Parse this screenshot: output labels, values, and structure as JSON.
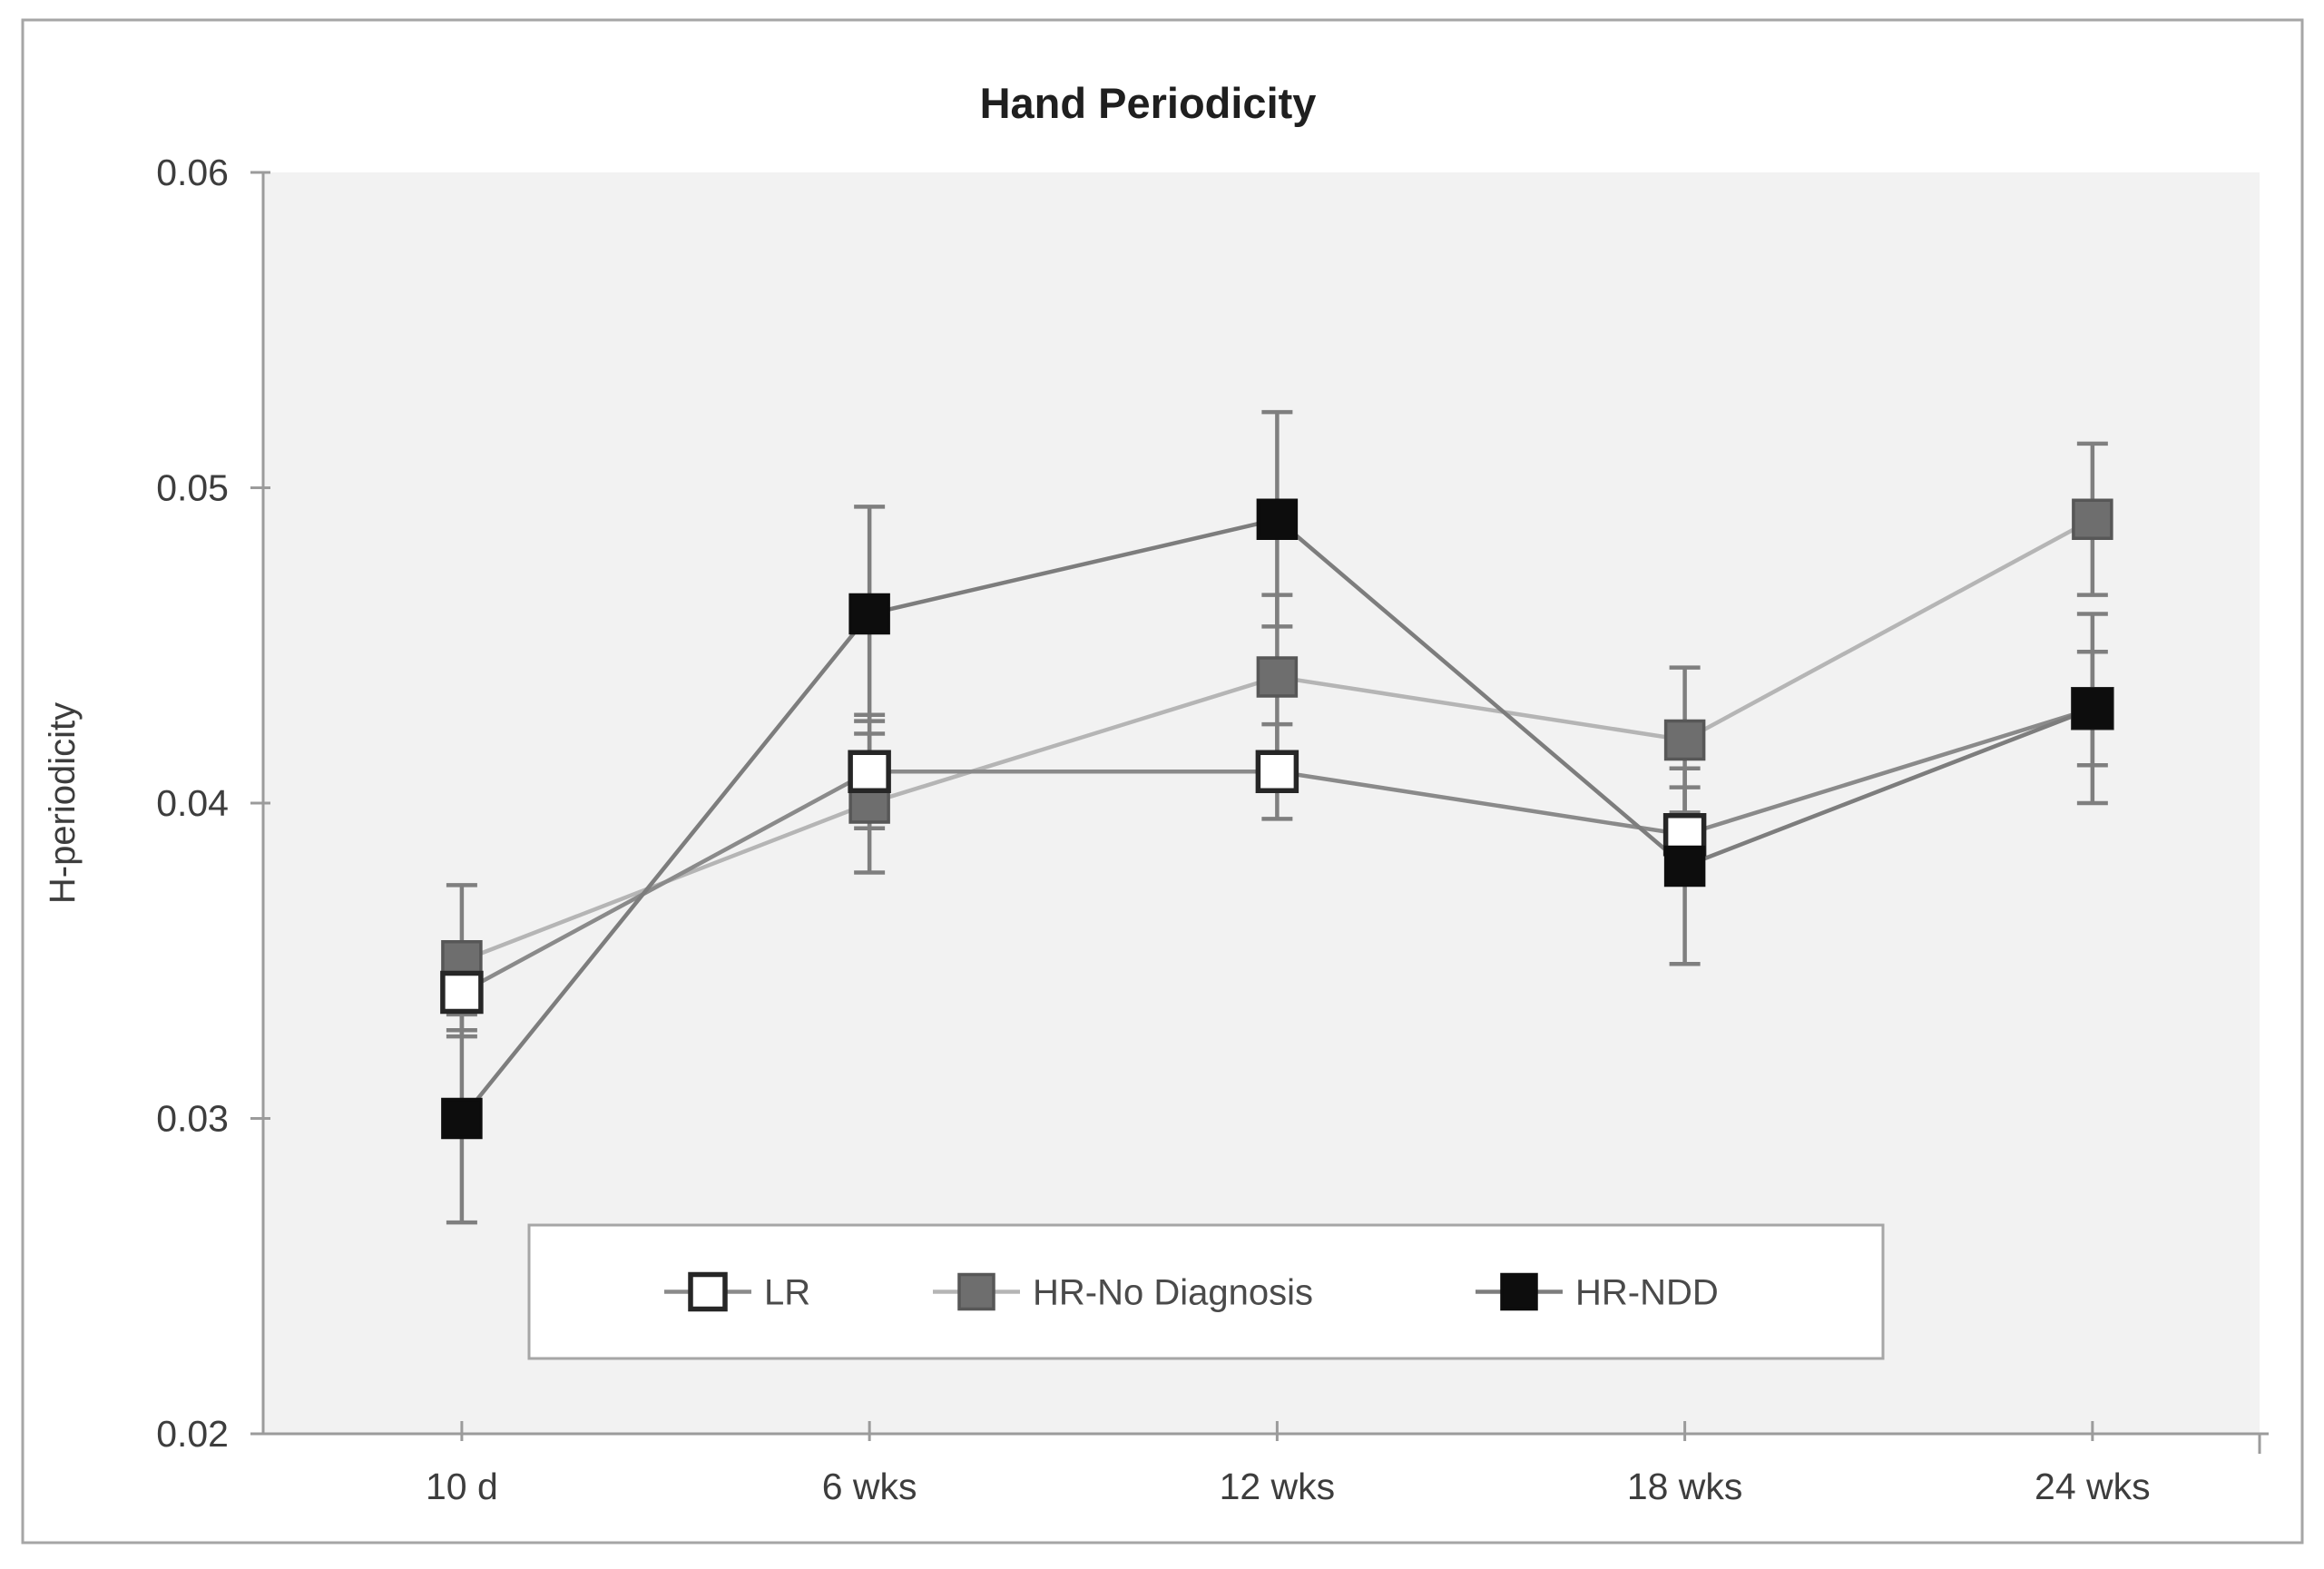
{
  "figure": {
    "title": "Hand Periodicity",
    "y_axis_title": "H-periodicity"
  },
  "chart_data": {
    "type": "line",
    "title": "Hand Periodicity",
    "xlabel": "",
    "ylabel": "H-periodicity",
    "categories": [
      "10 d",
      "6 wks",
      "12 wks",
      "18 wks",
      "24 wks"
    ],
    "ylim": [
      0.02,
      0.06
    ],
    "y_ticks": [
      0.06,
      0.05,
      0.04,
      0.03,
      0.02
    ],
    "y_tick_labels": [
      "0.06",
      "0.05",
      "0.04",
      "0.03",
      "0.02"
    ],
    "grid": false,
    "error_bars": true,
    "legend": {
      "position": "inside-bottom",
      "entries": [
        "LR",
        "HR-No Diagnosis",
        "HR-NDD"
      ]
    },
    "series": [
      {
        "name": "LR",
        "marker": "open-square",
        "values": [
          0.034,
          0.041,
          0.041,
          0.039,
          0.043
        ],
        "errors": [
          0.0012,
          0.0018,
          0.0015,
          0.0015,
          0.0018
        ],
        "line_color": "#8a8a8a",
        "marker_fill": "#ffffff",
        "marker_stroke": "#262626"
      },
      {
        "name": "HR-No Diagnosis",
        "marker": "filled-square",
        "values": [
          0.035,
          0.04,
          0.044,
          0.042,
          0.049
        ],
        "errors": [
          0.0024,
          0.0022,
          0.0026,
          0.0023,
          0.0024
        ],
        "line_color": "#b5b5b5",
        "marker_fill": "#6e6e6e",
        "marker_stroke": "#575757"
      },
      {
        "name": "HR-NDD",
        "marker": "filled-square",
        "values": [
          0.03,
          0.046,
          0.049,
          0.038,
          0.043
        ],
        "errors": [
          0.0033,
          0.0034,
          0.0034,
          0.0031,
          0.003
        ],
        "line_color": "#7d7d7d",
        "marker_fill": "#0d0d0d",
        "marker_stroke": "#0d0d0d"
      }
    ],
    "colors": {
      "plot_bg": "#f2f2f2",
      "page_bg": "#ffffff",
      "axis": "#9b9b9b",
      "frame_border": "#a6a6a6",
      "error_bar": "#7f7f7f",
      "tick_text": "#3d3d3d",
      "title_text": "#1f1f1f"
    }
  }
}
